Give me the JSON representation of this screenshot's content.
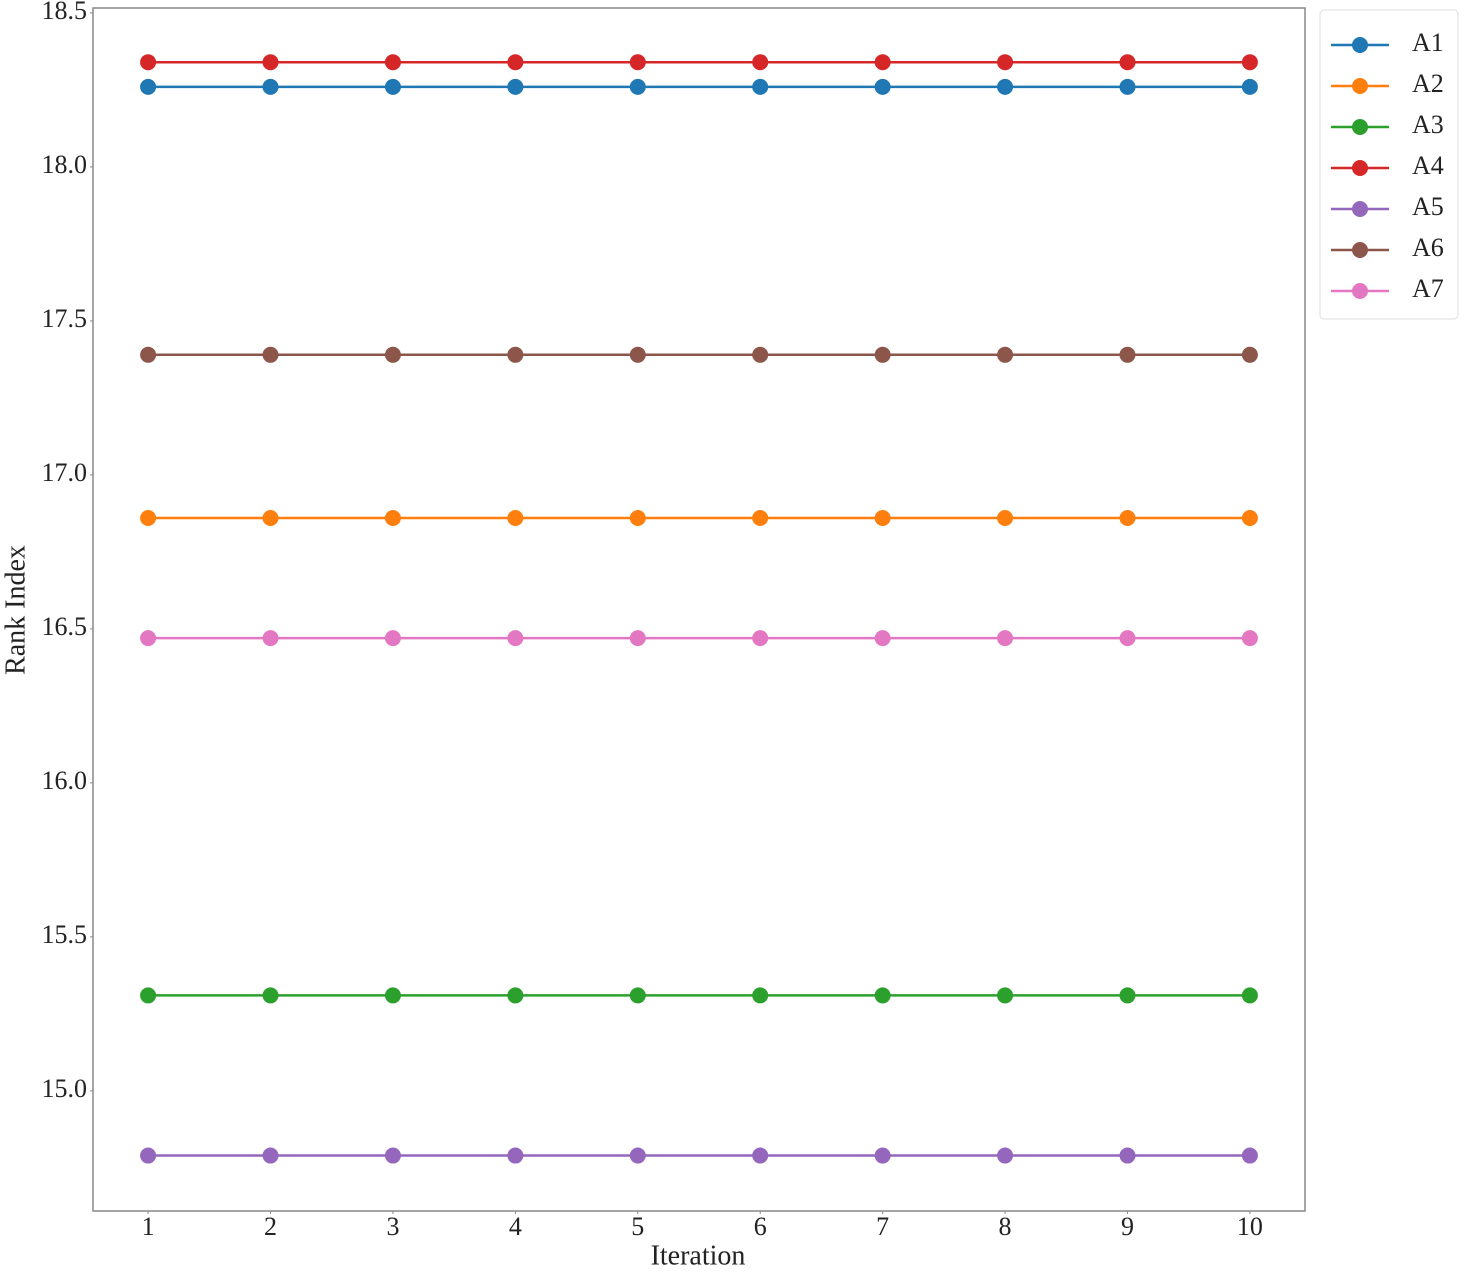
{
  "chart_data": {
    "type": "line",
    "x_label": "Iteration",
    "y_label": "Rank Index",
    "x": [
      1,
      2,
      3,
      4,
      5,
      6,
      7,
      8,
      9,
      10
    ],
    "xlim": [
      0.55,
      10.45
    ],
    "xticks": [
      1,
      2,
      3,
      4,
      5,
      6,
      7,
      8,
      9,
      10
    ],
    "ylim": [
      14.61,
      18.516
    ],
    "yticks": [
      {
        "value": 15,
        "label": "15.0"
      },
      15.5,
      {
        "value": 16,
        "label": "16.0"
      },
      16.5,
      {
        "value": 17,
        "label": "17.0"
      },
      17.5,
      {
        "value": 18,
        "label": "18.0"
      },
      18.5
    ],
    "grid": false,
    "legend": "outside upper right",
    "series": [
      {
        "name": "A1",
        "color": "#1f77b4",
        "values": [
          18.26,
          18.26,
          18.26,
          18.26,
          18.26,
          18.26,
          18.26,
          18.26,
          18.26,
          18.26
        ]
      },
      {
        "name": "A2",
        "color": "#ff7f0e",
        "values": [
          16.86,
          16.86,
          16.86,
          16.86,
          16.86,
          16.86,
          16.86,
          16.86,
          16.86,
          16.86
        ]
      },
      {
        "name": "A3",
        "color": "#2ca02c",
        "values": [
          15.31,
          15.31,
          15.31,
          15.31,
          15.31,
          15.31,
          15.31,
          15.31,
          15.31,
          15.31
        ]
      },
      {
        "name": "A4",
        "color": "#d62728",
        "values": [
          18.34,
          18.34,
          18.34,
          18.34,
          18.34,
          18.34,
          18.34,
          18.34,
          18.34,
          18.34
        ]
      },
      {
        "name": "A5",
        "color": "#9467bd",
        "values": [
          14.79,
          14.79,
          14.79,
          14.79,
          14.79,
          14.79,
          14.79,
          14.79,
          14.79,
          14.79
        ]
      },
      {
        "name": "A6",
        "color": "#8c564b",
        "values": [
          17.39,
          17.39,
          17.39,
          17.39,
          17.39,
          17.39,
          17.39,
          17.39,
          17.39,
          17.39
        ]
      },
      {
        "name": "A7",
        "color": "#e377c2",
        "values": [
          16.47,
          16.47,
          16.47,
          16.47,
          16.47,
          16.47,
          16.47,
          16.47,
          16.47,
          16.47
        ]
      }
    ]
  }
}
